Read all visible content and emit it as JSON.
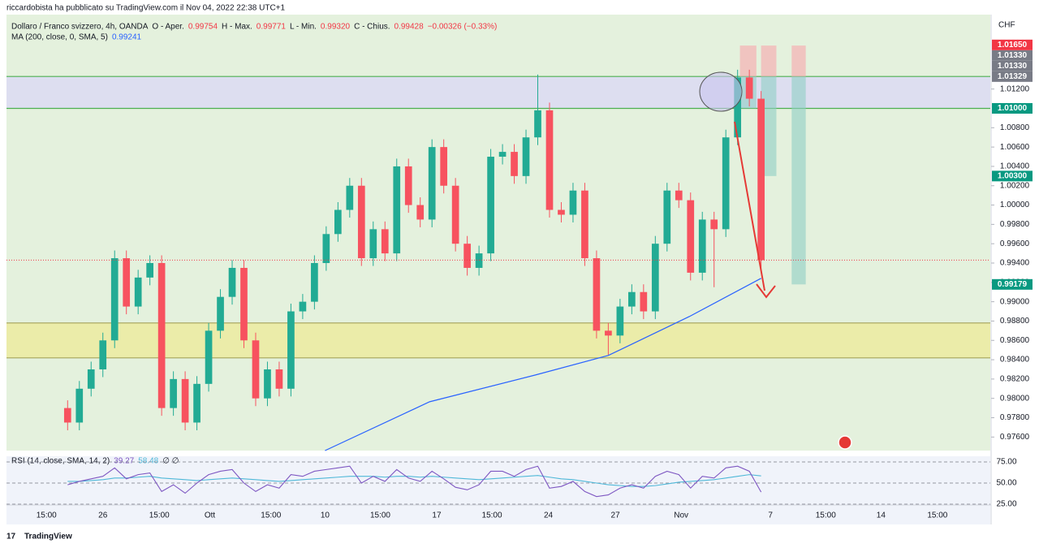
{
  "header": {
    "publisher": "riccardobista ha pubblicato su TradingView.com il Nov 04, 2022 22:38 UTC+1",
    "brand": "TradingView"
  },
  "chart_data": {
    "type": "candlestick",
    "title": "Dollaro / Franco svizzero, 4h, OANDA",
    "legend": [
      {
        "label": "O - Aper.",
        "value": "0.99754"
      },
      {
        "label": "H - Max.",
        "value": "0.99771"
      },
      {
        "label": "L - Min.",
        "value": "0.99320"
      },
      {
        "label": "C - Chius.",
        "value": "0.99428"
      }
    ],
    "change": "−0.00326 (−0.33%)",
    "currency": "CHF",
    "up_color": "#22ab94",
    "down_color": "#f7525f",
    "open": [
      0.979,
      0.9775,
      0.981,
      0.983,
      0.986,
      0.9945,
      0.9895,
      0.9925,
      0.994,
      0.979,
      0.982,
      0.9775,
      0.9815,
      0.987,
      0.9905,
      0.9935,
      0.986,
      0.98,
      0.983,
      0.981,
      0.989,
      0.99,
      0.994,
      0.997,
      0.9995,
      1.002,
      0.9945,
      0.9975,
      0.995,
      1.004,
      1.0,
      0.9985,
      1.006,
      1.002,
      0.996,
      0.9935,
      0.995,
      1.005,
      1.0055,
      1.003,
      1.007,
      1.0098,
      0.9995,
      0.999,
      1.0015,
      0.9945,
      0.987,
      0.9865,
      0.9895,
      0.991,
      0.989,
      0.996,
      1.0015,
      1.0005,
      0.993,
      0.9985,
      0.9975,
      1.007,
      1.0132,
      1.011
    ],
    "high": [
      0.9798,
      0.9818,
      0.9838,
      0.9868,
      0.9953,
      0.9953,
      0.9933,
      0.9948,
      0.9948,
      0.9828,
      0.9828,
      0.9823,
      0.9878,
      0.9913,
      0.9943,
      0.9943,
      0.9868,
      0.9838,
      0.9838,
      0.9898,
      0.9908,
      0.9948,
      0.9978,
      1.0003,
      1.0028,
      1.0028,
      0.9983,
      0.9983,
      1.0048,
      1.0048,
      1.0008,
      1.0068,
      1.0068,
      1.0028,
      0.9968,
      0.9958,
      1.0058,
      1.0063,
      1.0063,
      1.0078,
      1.0135,
      1.0106,
      1.0003,
      1.0023,
      1.0023,
      0.9953,
      0.9878,
      0.9903,
      0.9918,
      0.9918,
      0.9968,
      1.0023,
      1.0023,
      1.0013,
      0.9993,
      0.9993,
      1.0078,
      1.014,
      1.014,
      1.0118
    ],
    "low": [
      0.9767,
      0.9767,
      0.9802,
      0.9822,
      0.9852,
      0.9887,
      0.9887,
      0.9917,
      0.9782,
      0.9782,
      0.9767,
      0.9767,
      0.9807,
      0.9862,
      0.9897,
      0.9852,
      0.9792,
      0.9792,
      0.9802,
      0.9802,
      0.9882,
      0.9892,
      0.9932,
      0.9962,
      0.9987,
      0.9937,
      0.9937,
      0.9942,
      0.9942,
      0.9992,
      0.9977,
      0.9977,
      1.0012,
      0.9952,
      0.9927,
      0.9927,
      0.9942,
      1.0042,
      1.0022,
      1.0022,
      1.0062,
      0.9987,
      0.9982,
      0.9982,
      0.9937,
      0.9862,
      0.9845,
      0.9857,
      0.9887,
      0.9882,
      0.9882,
      0.9952,
      0.9997,
      0.9922,
      0.9922,
      0.9915,
      0.9967,
      1.0062,
      1.0102,
      0.9932
    ],
    "close": [
      0.9775,
      0.981,
      0.983,
      0.986,
      0.9945,
      0.9895,
      0.9925,
      0.994,
      0.979,
      0.982,
      0.9775,
      0.9815,
      0.987,
      0.9905,
      0.9935,
      0.986,
      0.98,
      0.983,
      0.981,
      0.989,
      0.99,
      0.994,
      0.997,
      0.9995,
      1.002,
      0.9945,
      0.9975,
      0.995,
      1.004,
      1.0,
      0.9985,
      1.006,
      1.002,
      0.996,
      0.9935,
      0.995,
      1.005,
      1.0055,
      1.003,
      1.007,
      1.0098,
      0.9995,
      0.999,
      1.0015,
      0.9945,
      0.987,
      0.9865,
      0.9895,
      0.991,
      0.989,
      0.996,
      1.0015,
      1.0005,
      0.993,
      0.9985,
      0.9975,
      1.007,
      1.0132,
      1.011,
      0.9943
    ],
    "ma": {
      "name": "MA (200, close, 0, SMA, 5)",
      "value_label": "0.99241",
      "color": "#2962ff",
      "x": [
        21.9,
        30.8,
        39.8,
        46.0,
        52.9,
        59.0
      ],
      "values": [
        0.9746,
        0.97965,
        0.98242,
        0.98444,
        0.98847,
        0.99242
      ]
    },
    "xlim": [
      -5.2,
      78.5
    ],
    "xticks": [
      {
        "value": -1.8,
        "label": "15:00"
      },
      {
        "value": 3.0,
        "label": "26"
      },
      {
        "value": 7.8,
        "label": "15:00"
      },
      {
        "value": 12.1,
        "label": "Ott"
      },
      {
        "value": 17.3,
        "label": "15:00"
      },
      {
        "value": 21.9,
        "label": "10"
      },
      {
        "value": 26.6,
        "label": "15:00"
      },
      {
        "value": 31.4,
        "label": "17"
      },
      {
        "value": 36.1,
        "label": "15:00"
      },
      {
        "value": 40.9,
        "label": "24"
      },
      {
        "value": 46.6,
        "label": "27"
      },
      {
        "value": 52.2,
        "label": "Nov"
      },
      {
        "value": 59.8,
        "label": "7"
      },
      {
        "value": 64.5,
        "label": "15:00"
      },
      {
        "value": 69.2,
        "label": "14"
      },
      {
        "value": 74.0,
        "label": "15:00"
      }
    ],
    "ylim": [
      0.9746,
      1.0197
    ],
    "yticks": [
      {
        "value": 0.976,
        "label": "0.97600"
      },
      {
        "value": 0.978,
        "label": "0.97800"
      },
      {
        "value": 0.98,
        "label": "0.98000"
      },
      {
        "value": 0.982,
        "label": "0.98200"
      },
      {
        "value": 0.984,
        "label": "0.98400"
      },
      {
        "value": 0.986,
        "label": "0.98600"
      },
      {
        "value": 0.988,
        "label": "0.98800"
      },
      {
        "value": 0.99,
        "label": "0.99000"
      },
      {
        "value": 0.992,
        "label": "0.99200"
      },
      {
        "value": 0.994,
        "label": "0.99400"
      },
      {
        "value": 0.996,
        "label": "0.99600"
      },
      {
        "value": 0.998,
        "label": "0.99800"
      },
      {
        "value": 1.0,
        "label": "1.00000"
      },
      {
        "value": 1.002,
        "label": "1.00200"
      },
      {
        "value": 1.004,
        "label": "1.00400"
      },
      {
        "value": 1.006,
        "label": "1.00600"
      },
      {
        "value": 1.008,
        "label": "1.00800"
      },
      {
        "value": 1.012,
        "label": "1.01200"
      }
    ],
    "price_labels": [
      {
        "value": 1.0165,
        "label": "1.01650",
        "color": "#f23645"
      },
      {
        "value": 1.0133,
        "label": "1.01330",
        "color": "#787b86"
      },
      {
        "value": 1.0133,
        "label": "1.01330",
        "color": "#787b86"
      },
      {
        "value": 1.01329,
        "label": "1.01329",
        "color": "#787b86"
      },
      {
        "value": 1.01,
        "label": "1.01000",
        "color": "#089981"
      },
      {
        "value": 1.003,
        "label": "1.00300",
        "color": "#089981"
      },
      {
        "value": 0.99179,
        "label": "0.99179",
        "color": "#089981"
      }
    ],
    "zones": [
      {
        "from": 1.01,
        "to": 1.0133,
        "color": "#dcdaf3",
        "edge": "#4caf50"
      },
      {
        "from": 0.98419,
        "to": 0.9878,
        "color": "#ecebA0",
        "edge": "#a5a35a"
      }
    ],
    "positions": [
      {
        "start": 57.2,
        "end": 58.6,
        "stop": 1.0165,
        "entry": 1.0133,
        "target": 1.01
      },
      {
        "start": 59.0,
        "end": 60.3,
        "stop": 1.0165,
        "entry": 1.0133,
        "target": 1.003
      },
      {
        "start": 61.6,
        "end": 62.8,
        "stop": 1.0165,
        "entry": 1.01329,
        "target": 0.99179
      }
    ],
    "rsi": {
      "name": "RSI (14, close, SMA, 14, 2)",
      "na": "∅ ∅",
      "color": "#7e57c2",
      "sma_color": "#4fb8d8",
      "values": [
        48,
        52,
        55,
        58,
        68,
        55,
        60,
        62,
        40,
        48,
        38,
        50,
        60,
        64,
        66,
        50,
        40,
        48,
        44,
        60,
        58,
        64,
        66,
        68,
        70,
        50,
        58,
        52,
        66,
        56,
        52,
        64,
        55,
        45,
        42,
        48,
        64,
        64,
        58,
        66,
        70,
        44,
        46,
        52,
        40,
        34,
        36,
        44,
        48,
        44,
        58,
        64,
        60,
        44,
        58,
        56,
        68,
        70,
        64,
        39.27
      ],
      "sma": [
        52,
        52,
        53,
        54,
        56,
        56,
        57,
        58,
        56,
        55,
        54,
        53,
        54,
        55,
        56,
        55,
        54,
        53,
        52,
        53,
        54,
        55,
        56,
        57,
        58,
        58,
        58,
        57,
        58,
        58,
        57,
        58,
        57,
        56,
        55,
        54,
        55,
        56,
        57,
        58,
        59,
        57,
        55,
        54,
        52,
        50,
        48,
        47,
        46,
        46,
        47,
        49,
        51,
        52,
        53,
        54,
        56,
        58,
        60,
        58.48
      ],
      "ylim": [
        25,
        80.8
      ],
      "yticks": [
        {
          "value": 75,
          "label": "75.00"
        },
        {
          "value": 50,
          "label": "50.00"
        },
        {
          "value": 25,
          "label": "25.00"
        }
      ]
    }
  }
}
